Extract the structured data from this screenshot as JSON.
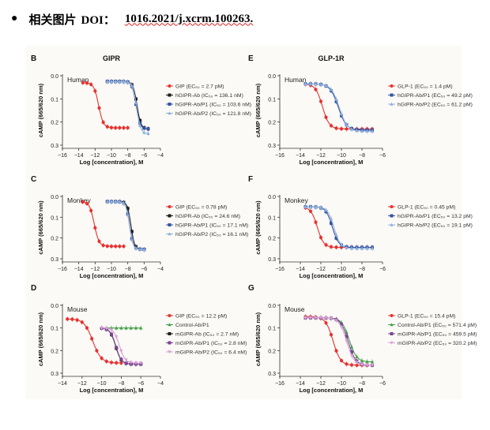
{
  "header": {
    "bullet": "●",
    "label": "相关图片",
    "doi_label": "DOI：",
    "doi": "1016.2021/j.xcrm.100263."
  },
  "colors": {
    "red": "#e8312f",
    "black": "#1c1c1c",
    "blue": "#3553a2",
    "lightblue": "#8fb0dc",
    "green": "#43a047",
    "purple": "#7a4392",
    "pink": "#d9a1d6"
  },
  "chart_data": [
    {
      "id": "B",
      "type": "line",
      "title": "GIPR",
      "species": "Human",
      "xlabel": "Log [concentration], M",
      "ylabel": "cAMP (665/620 nm)",
      "xlim": [
        -16,
        -4
      ],
      "ylim": [
        0.3,
        0.0
      ],
      "xticks": [
        "−16",
        "−14",
        "−12",
        "−10",
        "−8",
        "−6",
        "−4"
      ],
      "yticks": [
        "0.0",
        "0.1",
        "0.2",
        "0.3"
      ],
      "series": [
        {
          "name": "GIP (EC₅₀ = 2.7 pM)",
          "color": "red",
          "top": 0.225,
          "bottom": 0.03,
          "ec50": -11.57,
          "hill": -1.5,
          "x": [
            -13.5,
            -13,
            -12.5,
            -12,
            -11.5,
            -11,
            -10.5,
            -10,
            -9.5,
            -9,
            -8.5,
            -8
          ]
        },
        {
          "name": "hGIPR-Ab (IC₅₀ = 136.1 nM)",
          "color": "black",
          "top": 0.025,
          "bottom": 0.23,
          "ec50": -6.87,
          "hill": 1.8,
          "x": [
            -10.5,
            -10,
            -9.5,
            -9,
            -8.5,
            -8,
            -7.5,
            -7,
            -6.5,
            -6,
            -5.5
          ]
        },
        {
          "name": "hGIPR-Ab/P1 (IC₅₀ = 103.6 nM)",
          "color": "blue",
          "top": 0.025,
          "bottom": 0.23,
          "ec50": -6.98,
          "hill": 1.8,
          "x": [
            -10.5,
            -10,
            -9.5,
            -9,
            -8.5,
            -8,
            -7.5,
            -7,
            -6.5,
            -6,
            -5.5
          ]
        },
        {
          "name": "hGIPR-Ab/P2 (IC₅₀ = 121.8 nM)",
          "color": "lightblue",
          "top": 0.025,
          "bottom": 0.25,
          "ec50": -6.91,
          "hill": 1.8,
          "x": [
            -10.5,
            -10,
            -9.5,
            -9,
            -8.5,
            -8,
            -7.5,
            -7,
            -6.5,
            -6,
            -5.5
          ]
        }
      ]
    },
    {
      "id": "E",
      "type": "line",
      "title": "GLP-1R",
      "species": "Human",
      "xlabel": "Log [concentration], M",
      "ylabel": "cAMP (665/620 nm)",
      "xlim": [
        -16,
        -6
      ],
      "ylim": [
        0.3,
        0.0
      ],
      "xticks": [
        "−16",
        "−14",
        "−12",
        "−10",
        "−8",
        "−6"
      ],
      "yticks": [
        "0.0",
        "0.1",
        "0.2",
        "0.3"
      ],
      "series": [
        {
          "name": "GLP-1 (EC₅₀ = 1.4 pM)",
          "color": "red",
          "top": 0.23,
          "bottom": 0.035,
          "ec50": -11.85,
          "hill": -1.3,
          "x": [
            -13.5,
            -13,
            -12.5,
            -12,
            -11.5,
            -11,
            -10.5,
            -10,
            -9.5,
            -9,
            -8.5,
            -8,
            -7.5,
            -7
          ]
        },
        {
          "name": "hGIPR-Ab/P1 (EC₅₀ = 49.2 pM)",
          "color": "blue",
          "top": 0.235,
          "bottom": 0.035,
          "ec50": -10.31,
          "hill": -1.1,
          "x": [
            -13.5,
            -13,
            -12.5,
            -12,
            -11.5,
            -11,
            -10.5,
            -10,
            -9.5,
            -9,
            -8.5,
            -8,
            -7.5,
            -7
          ]
        },
        {
          "name": "hGIPR-Ab/P2 (EC₅₀ = 61.2 pM)",
          "color": "lightblue",
          "top": 0.24,
          "bottom": 0.035,
          "ec50": -10.21,
          "hill": -1.1,
          "x": [
            -13.5,
            -13,
            -12.5,
            -12,
            -11.5,
            -11,
            -10.5,
            -10,
            -9.5,
            -9,
            -8.5,
            -8,
            -7.5,
            -7
          ]
        }
      ]
    },
    {
      "id": "C",
      "type": "line",
      "title": "",
      "species": "Monkey",
      "xlabel": "Log [concentration], M",
      "ylabel": "cAMP (665/620 nm)",
      "xlim": [
        -16,
        -4
      ],
      "ylim": [
        0.3,
        0.0
      ],
      "xticks": [
        "−16",
        "−14",
        "−12",
        "−10",
        "−8",
        "−6",
        "−4"
      ],
      "yticks": [
        "0.0",
        "0.1",
        "0.2",
        "0.3"
      ],
      "series": [
        {
          "name": "GIP (EC₅₀ = 0.78 pM)",
          "color": "red",
          "top": 0.24,
          "bottom": 0.025,
          "ec50": -12.1,
          "hill": -1.5,
          "x": [
            -13.5,
            -13,
            -12.5,
            -12,
            -11.5,
            -11,
            -10.5,
            -10,
            -9.5,
            -9,
            -8.5
          ]
        },
        {
          "name": "hGIPR-Ab (IC₅₀ = 24.6 nM)",
          "color": "black",
          "top": 0.025,
          "bottom": 0.255,
          "ec50": -7.61,
          "hill": 2.0,
          "x": [
            -10.5,
            -10,
            -9.5,
            -9,
            -8.5,
            -8,
            -7.5,
            -7,
            -6.5,
            -6
          ]
        },
        {
          "name": "hGIPR-Ab/P1 (IC₅₀ = 17.1 nM)",
          "color": "blue",
          "top": 0.025,
          "bottom": 0.255,
          "ec50": -7.77,
          "hill": 2.0,
          "x": [
            -10.5,
            -10,
            -9.5,
            -9,
            -8.5,
            -8,
            -7.5,
            -7,
            -6.5,
            -6
          ]
        },
        {
          "name": "hGIPR-Ab/P2 (IC₅₀ = 16.1 nM)",
          "color": "lightblue",
          "top": 0.025,
          "bottom": 0.255,
          "ec50": -7.79,
          "hill": 2.0,
          "x": [
            -10.5,
            -10,
            -9.5,
            -9,
            -8.5,
            -8,
            -7.5,
            -7,
            -6.5,
            -6
          ]
        }
      ]
    },
    {
      "id": "F",
      "type": "line",
      "title": "",
      "species": "Monkey",
      "xlabel": "Log [concentration], M",
      "ylabel": "cAMP (665/620 nm)",
      "xlim": [
        -16,
        -6
      ],
      "ylim": [
        0.3,
        0.0
      ],
      "xticks": [
        "−16",
        "−14",
        "−12",
        "−10",
        "−8",
        "−6"
      ],
      "yticks": [
        "0.0",
        "0.1",
        "0.2",
        "0.3"
      ],
      "series": [
        {
          "name": "GLP-1 (EC₅₀ = 0.45 pM)",
          "color": "red",
          "top": 0.245,
          "bottom": 0.05,
          "ec50": -12.35,
          "hill": -1.4,
          "x": [
            -13.5,
            -13,
            -12.5,
            -12,
            -11.5,
            -11,
            -10.5,
            -10,
            -9.5,
            -9,
            -8.5,
            -8,
            -7.5,
            -7
          ]
        },
        {
          "name": "hGIPR-Ab/P1 (EC₅₀ = 13.2 pM)",
          "color": "blue",
          "top": 0.245,
          "bottom": 0.05,
          "ec50": -10.88,
          "hill": -1.4,
          "x": [
            -13.5,
            -13,
            -12.5,
            -12,
            -11.5,
            -11,
            -10.5,
            -10,
            -9.5,
            -9,
            -8.5,
            -8,
            -7.5,
            -7
          ]
        },
        {
          "name": "hGIPR-Ab/P2 (EC₅₀ = 19.1 pM)",
          "color": "lightblue",
          "top": 0.25,
          "bottom": 0.05,
          "ec50": -10.72,
          "hill": -1.4,
          "x": [
            -13.5,
            -13,
            -12.5,
            -12,
            -11.5,
            -11,
            -10.5,
            -10,
            -9.5,
            -9,
            -8.5,
            -8,
            -7.5,
            -7
          ]
        }
      ]
    },
    {
      "id": "D",
      "type": "line",
      "title": "",
      "species": "Mouse",
      "xlabel": "Log [concentration], M",
      "ylabel": "cAMP (665/620 nm)",
      "xlim": [
        -14,
        -4
      ],
      "ylim": [
        0.3,
        0.0
      ],
      "xticks": [
        "−14",
        "−12",
        "−10",
        "−8",
        "−6",
        "−4"
      ],
      "yticks": [
        "0.0",
        "0.1",
        "0.2",
        "0.3"
      ],
      "series": [
        {
          "name": "GIP (EC₅₀ = 12.2 pM)",
          "color": "red",
          "top": 0.255,
          "bottom": 0.06,
          "ec50": -10.91,
          "hill": -1.0,
          "x": [
            -13.5,
            -13,
            -12.5,
            -12,
            -11.5,
            -11,
            -10.5,
            -10,
            -9.5,
            -9,
            -8.5,
            -8
          ]
        },
        {
          "name": "Control-Ab/P1",
          "color": "green",
          "top": 0.1,
          "bottom": 0.1,
          "ec50": -8,
          "hill": 1.0,
          "x": [
            -10,
            -9.5,
            -9,
            -8.5,
            -8,
            -7.5,
            -7,
            -6.5,
            -6
          ]
        },
        {
          "name": "mGIPR-Ab (IC₅₀ = 2.7 nM)",
          "color": "black",
          "top": 0.1,
          "bottom": 0.26,
          "ec50": -8.57,
          "hill": 1.5,
          "x": [
            -10,
            -9.5,
            -9,
            -8.5,
            -8,
            -7.5,
            -7,
            -6.5,
            -6
          ]
        },
        {
          "name": "mGIPR-Ab/P1 (IC₅₀ = 2.8 nM)",
          "color": "purple",
          "top": 0.1,
          "bottom": 0.26,
          "ec50": -8.55,
          "hill": 1.5,
          "x": [
            -10,
            -9.5,
            -9,
            -8.5,
            -8,
            -7.5,
            -7,
            -6.5,
            -6
          ]
        },
        {
          "name": "mGIPR-Ab/P2 (IC₅₀ = 6.4 nM)",
          "color": "pink",
          "top": 0.1,
          "bottom": 0.255,
          "ec50": -8.19,
          "hill": 1.5,
          "x": [
            -10,
            -9.5,
            -9,
            -8.5,
            -8,
            -7.5,
            -7,
            -6.5,
            -6
          ]
        }
      ]
    },
    {
      "id": "G",
      "type": "line",
      "title": "",
      "species": "Mouse",
      "xlabel": "Log [concentration], M",
      "ylabel": "cAMP (665/620 nm)",
      "xlim": [
        -16,
        -6
      ],
      "ylim": [
        0.3,
        0.0
      ],
      "xticks": [
        "−16",
        "−14",
        "−12",
        "−10",
        "−8",
        "−6"
      ],
      "yticks": [
        "0.0",
        "0.1",
        "0.2",
        "0.3"
      ],
      "series": [
        {
          "name": "GLP-1 (EC₅₀ = 15.4 pM)",
          "color": "red",
          "top": 0.265,
          "bottom": 0.05,
          "ec50": -10.81,
          "hill": -1.2,
          "x": [
            -13.5,
            -13,
            -12.5,
            -12,
            -11.5,
            -11,
            -10.5,
            -10,
            -9.5,
            -9,
            -8.5,
            -8,
            -7.5,
            -7
          ]
        },
        {
          "name": "Control-Ab/P1 (EC₅₀ = 571.4 pM)",
          "color": "green",
          "top": 0.25,
          "bottom": 0.055,
          "ec50": -9.24,
          "hill": -1.2,
          "x": [
            -13.5,
            -13,
            -12.5,
            -12,
            -11.5,
            -11,
            -10.5,
            -10,
            -9.5,
            -9,
            -8.5,
            -8,
            -7.5,
            -7
          ]
        },
        {
          "name": "mGIPR-Ab/P1 (EC₅₀ = 459.5 pM)",
          "color": "purple",
          "top": 0.265,
          "bottom": 0.055,
          "ec50": -9.34,
          "hill": -1.2,
          "x": [
            -13.5,
            -13,
            -12.5,
            -12,
            -11.5,
            -11,
            -10.5,
            -10,
            -9.5,
            -9,
            -8.5,
            -8,
            -7.5,
            -7
          ]
        },
        {
          "name": "mGIPR-Ab/P2 (EC₅₀ = 320.2 pM)",
          "color": "pink",
          "top": 0.265,
          "bottom": 0.055,
          "ec50": -9.49,
          "hill": -1.2,
          "x": [
            -13.5,
            -13,
            -12.5,
            -12,
            -11.5,
            -11,
            -10.5,
            -10,
            -9.5,
            -9,
            -8.5,
            -8,
            -7.5,
            -7
          ]
        }
      ]
    }
  ]
}
